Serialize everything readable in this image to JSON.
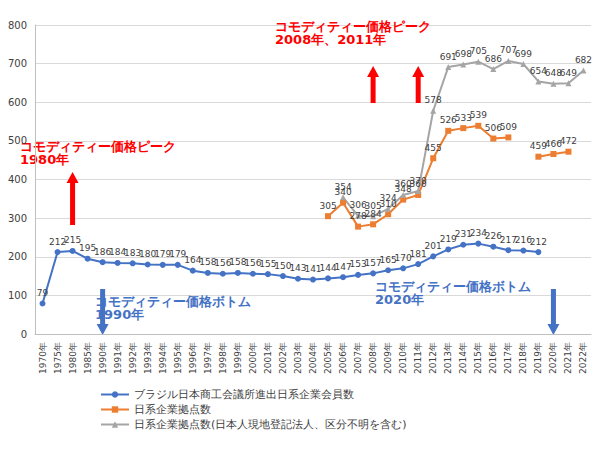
{
  "chart_data": {
    "type": "line",
    "categories": [
      "1970年",
      "1975年",
      "1980年",
      "1985年",
      "1990年",
      "1991年",
      "1992年",
      "1993年",
      "1994年",
      "1995年",
      "1996年",
      "1997年",
      "1998年",
      "1999年",
      "2000年",
      "2001年",
      "2002年",
      "2003年",
      "2004年",
      "2005年",
      "2006年",
      "2007年",
      "2008年",
      "2009年",
      "2010年",
      "2011年",
      "2012年",
      "2013年",
      "2014年",
      "2015年",
      "2016年",
      "2017年",
      "2018年",
      "2019年",
      "2020年",
      "2021年",
      "2022年"
    ],
    "series": [
      {
        "name": "ブラジル日本商工会議所進出日系企業会員数",
        "color": "#4472c4",
        "marker": "circle",
        "values": [
          79,
          212,
          215,
          195,
          186,
          184,
          183,
          180,
          179,
          179,
          164,
          158,
          156,
          158,
          156,
          155,
          150,
          143,
          141,
          144,
          147,
          153,
          157,
          165,
          170,
          181,
          201,
          219,
          231,
          234,
          226,
          217,
          216,
          212,
          null,
          null,
          null
        ]
      },
      {
        "name": "日系企業拠点数",
        "color": "#ed7d31",
        "marker": "square",
        "values": [
          null,
          null,
          null,
          null,
          null,
          null,
          null,
          null,
          null,
          null,
          null,
          null,
          null,
          null,
          null,
          null,
          null,
          null,
          null,
          305,
          340,
          278,
          284,
          310,
          348,
          360,
          455,
          526,
          533,
          539,
          506,
          509,
          null,
          459,
          466,
          472,
          null
        ]
      },
      {
        "name": "日系企業拠点数(日本人現地登記法人、区分不明を含む)",
        "color": "#a5a5a5",
        "marker": "triangle",
        "values": [
          null,
          null,
          null,
          null,
          null,
          null,
          null,
          null,
          null,
          null,
          null,
          null,
          null,
          null,
          null,
          null,
          null,
          null,
          null,
          null,
          354,
          306,
          305,
          324,
          360,
          370,
          578,
          691,
          698,
          705,
          686,
          707,
          699,
          654,
          648,
          649,
          682
        ]
      }
    ],
    "ylim": [
      0,
      800
    ],
    "yticks": [
      0,
      100,
      200,
      300,
      400,
      500,
      600,
      700,
      800
    ],
    "grid": true,
    "legend": "bottom",
    "data_labels": true,
    "annotations": [
      {
        "text": "コモディティー価格ピーク\n1980年",
        "color": "#ff0000",
        "x": [
          "1980年"
        ],
        "marker": "up"
      },
      {
        "text": "コモディティー価格ピーク\n2008年、2011年",
        "color": "#ff0000",
        "x": [
          "2008年",
          "2011年"
        ],
        "marker": "up"
      },
      {
        "text": "コモディティー価格ボトム\n1990年",
        "color": "#4472c4",
        "x": [
          "1990年"
        ],
        "marker": "down"
      },
      {
        "text": "コモディティー価格ボトム\n2020年",
        "color": "#4472c4",
        "x": [
          "2020年"
        ],
        "marker": "down"
      }
    ]
  }
}
